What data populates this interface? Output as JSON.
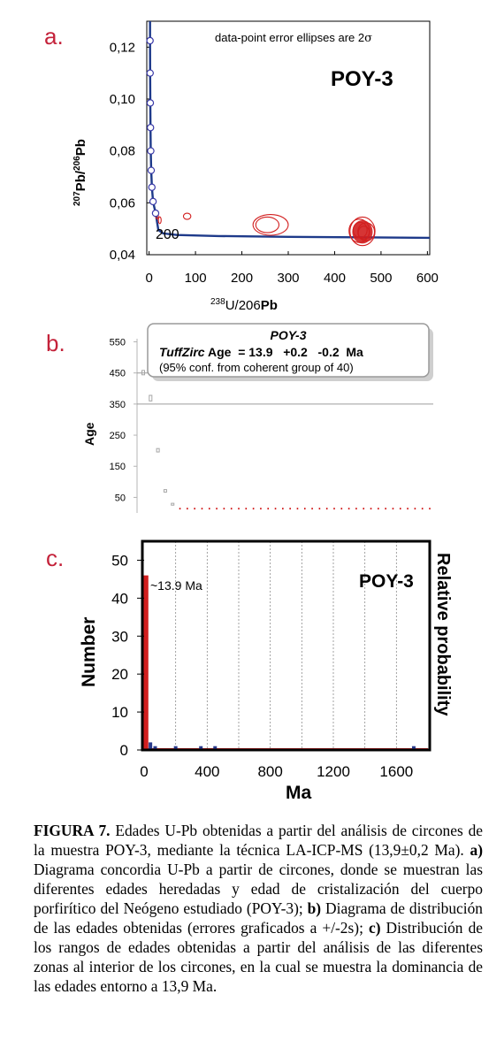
{
  "panel_a": {
    "letter": "a.",
    "note_text": "data-point error ellipses are 2",
    "note_sigma": "σ",
    "sample_label": "POY-3",
    "y_label_207": "207",
    "y_label_pb1": "Pb/",
    "y_label_206": "206",
    "y_label_pb2": "Pb",
    "x_label_238": "238",
    "x_label_mid": "U/206",
    "x_label_pb": "Pb",
    "age_marker": "200",
    "colors": {
      "curve": "#1e3a8a",
      "ellipse": "#d21f1f",
      "point_edge": "#3a3aa8"
    }
  },
  "panel_b": {
    "letter": "b.",
    "y_label": "Age",
    "box_title": "POY-3",
    "box_age_label": "TuffZirc",
    "box_age_text": " Age  = 13.9   +0.2   -0.2  Ma",
    "box_conf": "(95% conf. from coherent group of 40)",
    "colors": {
      "box_border": "#9a9a9a",
      "bar": "#a6a6a6",
      "coherent": "#d21f1f"
    }
  },
  "panel_c": {
    "letter": "c.",
    "y_label": "Number",
    "x_label": "Ma",
    "right_label": "Relative probability",
    "sample_label": "POY-3",
    "peak_label": "~13.9 Ma",
    "colors": {
      "bar": "#d21f1f",
      "small_bar": "#2a3a8c",
      "frame": "#000000"
    }
  },
  "caption": {
    "fig_label": "FIGURA 7.",
    "body1": " Edades U-Pb obtenidas a partir del análisis de circones de la muestra POY-3, mediante la técnica LA-ICP-MS (13,9±0,2 Ma). ",
    "a_label": "a)",
    "body2": " Diagrama concordia U-Pb a partir de circones, donde se muestran las diferentes edades heredadas y edad de cristalización del cuerpo porfirítico del Neógeno estudiado (POY-3); ",
    "b_label": "b)",
    "body3": " Diagrama de distribución de las edades obtenidas (errores graficados a +/-2s); ",
    "c_label": "c)",
    "body4": " Distribución de los rangos de edades obtenidas a partir del análisis de las diferentes zonas al interior de los circones, en la cual se muestra la dominancia de las edades entorno a 13,9 Ma."
  },
  "chart_data": [
    {
      "type": "scatter",
      "xlabel": "238U/206Pb",
      "ylabel": "207Pb/206Pb",
      "xlim": [
        -5,
        605
      ],
      "ylim": [
        0.04,
        0.13
      ],
      "x_ticks": [
        0,
        100,
        200,
        300,
        400,
        500,
        600
      ],
      "x_tick_labels": [
        "0",
        "100",
        "200",
        "300",
        "400",
        "500",
        "600"
      ],
      "y_ticks": [
        0.04,
        0.06,
        0.08,
        0.1,
        0.12
      ],
      "y_tick_labels": [
        "0,04",
        "0,06",
        "0,08",
        "0,10",
        "0,12"
      ],
      "concordia_points": [
        {
          "x": 2.0,
          "y": 0.1225
        },
        {
          "x": 2.2,
          "y": 0.11
        },
        {
          "x": 2.6,
          "y": 0.0985
        },
        {
          "x": 3.0,
          "y": 0.089
        },
        {
          "x": 3.6,
          "y": 0.08
        },
        {
          "x": 4.5,
          "y": 0.0725
        },
        {
          "x": 6.0,
          "y": 0.066
        },
        {
          "x": 8.5,
          "y": 0.0605
        },
        {
          "x": 14.0,
          "y": 0.056
        }
      ],
      "ellipses": [
        {
          "x": 17,
          "y": 0.0553,
          "rx": 3,
          "ry": 0.0015
        },
        {
          "x": 23,
          "y": 0.0533,
          "rx": 3,
          "ry": 0.0013
        },
        {
          "x": 82,
          "y": 0.0548,
          "rx": 8,
          "ry": 0.0012
        },
        {
          "x": 262,
          "y": 0.0515,
          "rx": 38,
          "ry": 0.004
        },
        {
          "x": 255,
          "y": 0.0515,
          "rx": 25,
          "ry": 0.003
        },
        {
          "x": 453,
          "y": 0.0492,
          "rx": 22,
          "ry": 0.0045
        },
        {
          "x": 460,
          "y": 0.049,
          "rx": 27,
          "ry": 0.0055
        },
        {
          "x": 468,
          "y": 0.0488,
          "rx": 18,
          "ry": 0.0035
        },
        {
          "x": 455,
          "y": 0.0495,
          "rx": 15,
          "ry": 0.003
        },
        {
          "x": 463,
          "y": 0.0485,
          "rx": 12,
          "ry": 0.0025
        }
      ],
      "ellipse_fill": {
        "x": 460,
        "y": 0.0488,
        "rx": 22,
        "ry": 0.0045
      }
    },
    {
      "type": "scatter",
      "ylabel": "Age",
      "ylim": [
        0,
        560
      ],
      "y_ticks": [
        50,
        150,
        250,
        350,
        450,
        550
      ],
      "y_tick_labels": [
        "50",
        "150",
        "250",
        "350",
        "450",
        "550"
      ],
      "grid_lines": [
        350,
        450
      ],
      "n_points": 40,
      "inherited": [
        {
          "index": 0,
          "low": 444,
          "high": 458
        },
        {
          "index": 1,
          "low": 360,
          "high": 378
        },
        {
          "index": 2,
          "low": 196,
          "high": 207
        },
        {
          "index": 3,
          "low": 67,
          "high": 75
        },
        {
          "index": 4,
          "low": 25,
          "high": 31
        }
      ],
      "coherent_age": 13.9
    },
    {
      "type": "bar",
      "xlabel": "Ma",
      "ylabel": "Number",
      "xlim": [
        0,
        1800
      ],
      "ylim": [
        0,
        55
      ],
      "x_ticks": [
        0,
        400,
        800,
        1200,
        1600
      ],
      "x_tick_labels": [
        "0",
        "400",
        "800",
        "1200",
        "1600"
      ],
      "y_ticks": [
        0,
        10,
        20,
        30,
        40,
        50
      ],
      "y_tick_labels": [
        "0",
        "10",
        "20",
        "30",
        "40",
        "50"
      ],
      "grid_x": [
        200,
        400,
        600,
        800,
        1000,
        1200,
        1400,
        1600
      ],
      "peak": {
        "age": 13.9,
        "count": 46
      },
      "bars": [
        {
          "x": 10,
          "value": 46
        },
        {
          "x": 40,
          "value": 2
        },
        {
          "x": 70,
          "value": 1
        },
        {
          "x": 200,
          "value": 1
        },
        {
          "x": 360,
          "value": 1
        },
        {
          "x": 450,
          "value": 1
        },
        {
          "x": 1710,
          "value": 1
        }
      ]
    }
  ]
}
